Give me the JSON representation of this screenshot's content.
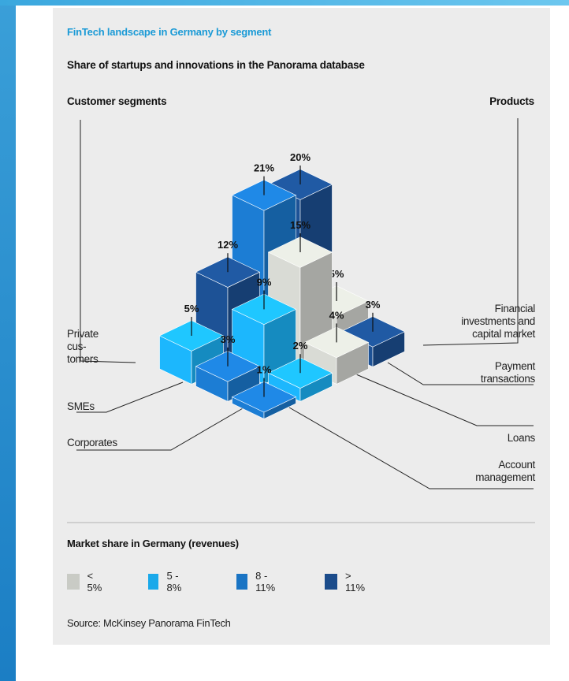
{
  "kicker": "FinTech landscape in Germany by segment",
  "subtitle": "Share of startups and innovations in the Panorama database",
  "left_header": "Customer segments",
  "right_header": "Products",
  "legend_title": "Market share in Germany (revenues)",
  "source": "Source: McKinsey Panorama FinTech",
  "colors": {
    "lt5": "#c9cbc5",
    "5to8": "#1aa9ea",
    "8to11": "#1a74c4",
    "gt11": "#1b4c8b"
  },
  "legend": [
    {
      "label": "< 5%",
      "color_key": "lt5"
    },
    {
      "label": "5 - 8%",
      "color_key": "5to8"
    },
    {
      "label": "8 - 11%",
      "color_key": "8to11"
    },
    {
      "label": "> 11%",
      "color_key": "gt11"
    }
  ],
  "chart_data": {
    "type": "bar",
    "customer_segments": [
      "Private customers",
      "SMEs",
      "Corporates"
    ],
    "products": [
      "Financial investments and capital market",
      "Payment transactions",
      "Loans",
      "Account management"
    ],
    "left_labels": [
      "Private\ncus-\ntomers",
      "SMEs",
      "Corporates"
    ],
    "right_labels": [
      "Financial\ninvestments and\ncapital market",
      "Payment\ntransactions",
      "Loans",
      "Account\nmanagement"
    ],
    "bars": [
      {
        "segment": "Private customers",
        "product": "Account management",
        "label": "5%",
        "value": 5,
        "color_key": "5to8"
      },
      {
        "segment": "Private customers",
        "product": "Loans",
        "label": "12%",
        "value": 12,
        "color_key": "gt11"
      },
      {
        "segment": "Private customers",
        "product": "Payment transactions",
        "label": "21%",
        "value": 21,
        "color_key": "8to11"
      },
      {
        "segment": "Private customers",
        "product": "Financial investments and capital market",
        "label": "20%",
        "value": 20,
        "color_key": "gt11"
      },
      {
        "segment": "SMEs",
        "product": "Account management",
        "label": "3%",
        "value": 3,
        "color_key": "8to11"
      },
      {
        "segment": "SMEs",
        "product": "Loans",
        "label": "9%",
        "value": 9,
        "color_key": "5to8"
      },
      {
        "segment": "SMEs",
        "product": "Payment transactions",
        "label": "15%",
        "value": 15,
        "color_key": "lt5"
      },
      {
        "segment": "SMEs",
        "product": "Financial investments and capital market",
        "label": "5%",
        "value": 5,
        "color_key": "lt5"
      },
      {
        "segment": "Corporates",
        "product": "Account management",
        "label": "1%",
        "value": 1,
        "color_key": "8to11"
      },
      {
        "segment": "Corporates",
        "product": "Loans",
        "label": "2%",
        "value": 2,
        "color_key": "5to8"
      },
      {
        "segment": "Corporates",
        "product": "Payment transactions",
        "label": "4%",
        "value": 4,
        "color_key": "lt5"
      },
      {
        "segment": "Corporates",
        "product": "Financial investments and capital market",
        "label": "3%",
        "value": 3,
        "color_key": "gt11"
      }
    ]
  }
}
